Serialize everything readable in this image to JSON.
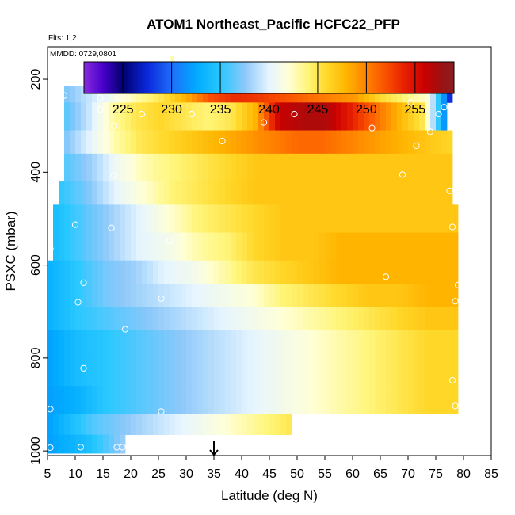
{
  "chart_data": {
    "type": "heatmap",
    "title": "ATOM1 Northeast_Pacific HCFC22_PFP",
    "annotations": [
      "Flts: 1,2",
      "MMDD: 0729,0801"
    ],
    "xlabel": "Latitude (deg N)",
    "ylabel": "PSXC (mbar)",
    "xlim": [
      5,
      85
    ],
    "ylim": [
      1010,
      130
    ],
    "y_reversed": true,
    "xticks": [
      5,
      10,
      15,
      20,
      25,
      30,
      35,
      40,
      45,
      50,
      55,
      60,
      65,
      70,
      75,
      80,
      85
    ],
    "yticks": [
      200,
      400,
      600,
      800,
      1000
    ],
    "colorbar": {
      "range": [
        221,
        259
      ],
      "ticks": [
        225,
        230,
        235,
        240,
        245,
        250,
        255
      ]
    },
    "arrow_marker_x": 35,
    "bands": [
      {
        "p": [
          150,
          215
        ],
        "x": [
          27.2,
          27.8
        ],
        "v": [
          243
        ]
      },
      {
        "p": [
          215,
          250
        ],
        "x": [
          8,
          78
        ],
        "v": [
          237,
          239,
          241,
          243,
          245,
          248,
          252,
          253.5,
          253,
          252,
          251,
          250,
          249,
          246,
          244,
          242,
          226
        ]
      },
      {
        "p": [
          250,
          310
        ],
        "x": [
          8,
          77
        ],
        "v": [
          236,
          239,
          243,
          245,
          246,
          245,
          244,
          245,
          248,
          256,
          257,
          257,
          254,
          251,
          248,
          245,
          230
        ]
      },
      {
        "p": [
          310,
          360
        ],
        "x": [
          8,
          78
        ],
        "v": [
          237,
          240,
          243,
          245,
          246,
          247,
          248,
          249,
          250,
          251,
          251,
          250,
          249,
          248,
          247,
          246
        ]
      },
      {
        "p": [
          360,
          420
        ],
        "x": [
          8,
          78
        ],
        "v": [
          236,
          238,
          241,
          243,
          244,
          245,
          246,
          247,
          247,
          247,
          247,
          247,
          247,
          247,
          247
        ]
      },
      {
        "p": [
          420,
          470
        ],
        "x": [
          7,
          78
        ],
        "v": [
          235,
          237,
          240,
          242,
          244,
          245,
          246,
          247,
          247,
          247,
          247,
          247,
          247,
          247,
          247
        ]
      },
      {
        "p": [
          470,
          530
        ],
        "x": [
          6,
          79
        ],
        "v": [
          234,
          236,
          238,
          240,
          242,
          244,
          245,
          246,
          247,
          247,
          247,
          247,
          247,
          247,
          247
        ]
      },
      {
        "p": [
          530,
          590
        ],
        "x": [
          6,
          79
        ],
        "v": [
          234,
          236,
          238,
          240,
          241,
          243,
          244,
          246,
          247,
          247,
          248,
          248,
          248,
          248,
          248
        ]
      },
      {
        "p": [
          590,
          640
        ],
        "x": [
          5,
          79
        ],
        "v": [
          233,
          235,
          237,
          238,
          240,
          241,
          243,
          245,
          246,
          247,
          248,
          248,
          248,
          248,
          248
        ]
      },
      {
        "p": [
          640,
          690
        ],
        "x": [
          5,
          79
        ],
        "v": [
          233,
          235,
          237,
          238,
          239,
          240,
          241,
          242,
          244,
          245,
          246,
          247,
          247,
          248,
          248
        ]
      },
      {
        "p": [
          690,
          740
        ],
        "x": [
          5,
          79
        ],
        "v": [
          233,
          235,
          236,
          237,
          238,
          239,
          240,
          241,
          242,
          243,
          244,
          245,
          246,
          247,
          247
        ]
      },
      {
        "p": [
          740,
          800
        ],
        "x": [
          5,
          79
        ],
        "v": [
          232,
          234,
          235,
          236,
          237,
          238,
          239,
          240,
          241,
          242,
          243,
          244,
          245,
          246,
          246
        ]
      },
      {
        "p": [
          800,
          860
        ],
        "x": [
          5,
          79
        ],
        "v": [
          232,
          234,
          235,
          236,
          237,
          238,
          239,
          240,
          241,
          242,
          243,
          244,
          245,
          246,
          246
        ]
      },
      {
        "p": [
          860,
          920
        ],
        "x": [
          5,
          79
        ],
        "v": [
          232,
          233,
          235,
          236,
          237,
          238,
          239,
          240,
          241,
          242,
          243,
          244,
          245,
          246,
          246
        ]
      },
      {
        "p": [
          920,
          965
        ],
        "x": [
          5,
          49
        ],
        "v": [
          232,
          234,
          236,
          237,
          238,
          239,
          240,
          241,
          242,
          243,
          244,
          245
        ]
      },
      {
        "p": [
          965,
          1005
        ],
        "x": [
          5,
          19
        ],
        "v": [
          232,
          233,
          234,
          236,
          238
        ]
      }
    ],
    "samples": [
      {
        "x": 8,
        "p": 235
      },
      {
        "x": 14.5,
        "p": 240
      },
      {
        "x": 14.5,
        "p": 265
      },
      {
        "x": 22,
        "p": 275
      },
      {
        "x": 17,
        "p": 300
      },
      {
        "x": 31,
        "p": 275
      },
      {
        "x": 27.5,
        "p": 200
      },
      {
        "x": 36.5,
        "p": 333
      },
      {
        "x": 44,
        "p": 293
      },
      {
        "x": 49.5,
        "p": 275
      },
      {
        "x": 63.5,
        "p": 305
      },
      {
        "x": 70.5,
        "p": 250
      },
      {
        "x": 71.5,
        "p": 343
      },
      {
        "x": 74,
        "p": 313
      },
      {
        "x": 75.5,
        "p": 275
      },
      {
        "x": 76.5,
        "p": 260
      },
      {
        "x": 17,
        "p": 407
      },
      {
        "x": 69,
        "p": 405
      },
      {
        "x": 77.5,
        "p": 440
      },
      {
        "x": 10,
        "p": 513
      },
      {
        "x": 16.5,
        "p": 520
      },
      {
        "x": 27,
        "p": 548
      },
      {
        "x": 78,
        "p": 518
      },
      {
        "x": 5.5,
        "p": 565
      },
      {
        "x": 11.5,
        "p": 638
      },
      {
        "x": 66,
        "p": 625
      },
      {
        "x": 79,
        "p": 643
      },
      {
        "x": 10.5,
        "p": 680
      },
      {
        "x": 25.5,
        "p": 672
      },
      {
        "x": 78.5,
        "p": 678
      },
      {
        "x": 19,
        "p": 738
      },
      {
        "x": 11.5,
        "p": 822
      },
      {
        "x": 78,
        "p": 848
      },
      {
        "x": 5.5,
        "p": 910
      },
      {
        "x": 25.5,
        "p": 915
      },
      {
        "x": 78.5,
        "p": 903
      },
      {
        "x": 5.5,
        "p": 993
      },
      {
        "x": 11,
        "p": 992
      },
      {
        "x": 17.5,
        "p": 992
      },
      {
        "x": 18.5,
        "p": 992
      }
    ]
  }
}
